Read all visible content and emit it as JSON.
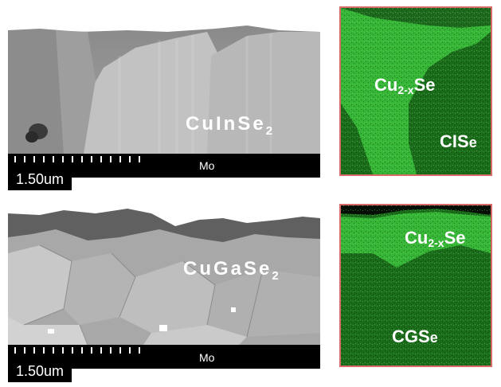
{
  "top_panel": {
    "material": {
      "base": "CuInSe",
      "sub": "2"
    },
    "substrate": "Mo",
    "scale_bar": "1.50um",
    "phase_a": {
      "prefix": "Cu",
      "sub": "2-x",
      "suffix": "Se"
    },
    "phase_b": {
      "main": "CIS",
      "small": "e"
    }
  },
  "bottom_panel": {
    "material": {
      "base": "CuGaSe",
      "sub": "2"
    },
    "substrate": "Mo",
    "scale_bar": "1.50um",
    "phase_a": {
      "prefix": "Cu",
      "sub": "2-x",
      "suffix": "Se"
    },
    "phase_b": {
      "main": "CGS",
      "small": "e"
    }
  },
  "colors": {
    "eds_bright": "#3cc23c",
    "eds_dark": "#135c13",
    "eds_border": "#d96a6a"
  }
}
